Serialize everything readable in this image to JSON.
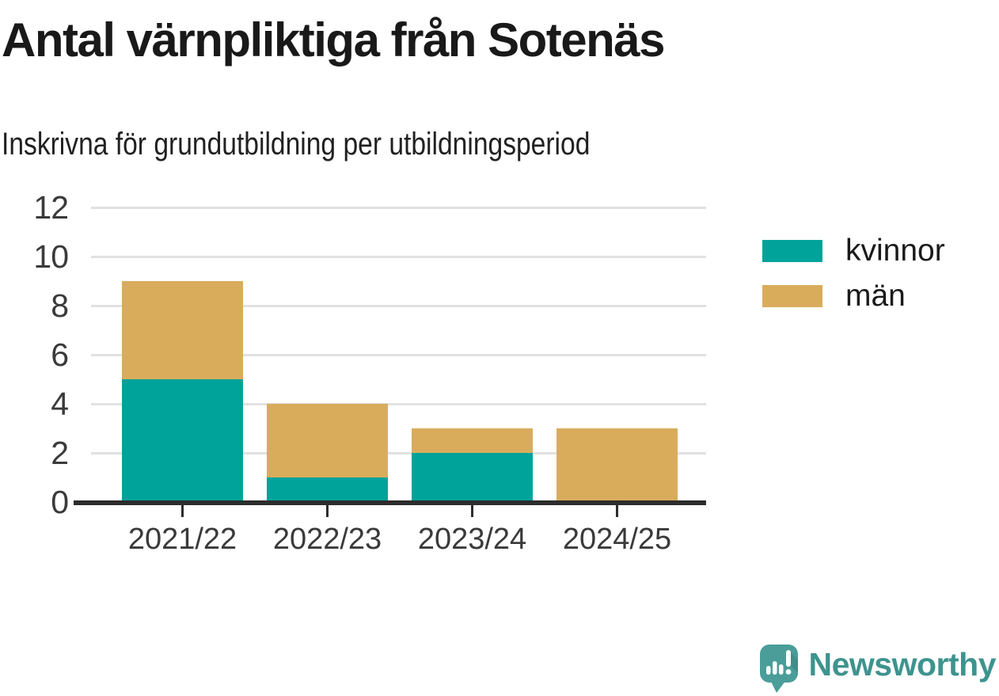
{
  "header": {
    "title": "Antal värnpliktiga från Sotenäs",
    "subtitle": "Inskrivna för grundutbildning per utbildningsperiod"
  },
  "chart_data": {
    "type": "bar",
    "stacked": true,
    "title": "Antal värnpliktiga från Sotenäs",
    "subtitle": "Inskrivna för grundutbildning per utbildningsperiod",
    "categories": [
      "2021/22",
      "2022/23",
      "2023/24",
      "2024/25"
    ],
    "series": [
      {
        "name": "kvinnor",
        "color": "#00A39A",
        "values": [
          5,
          1,
          2,
          0
        ]
      },
      {
        "name": "män",
        "color": "#D9AC5C",
        "values": [
          4,
          3,
          1,
          3
        ]
      }
    ],
    "totals": [
      9,
      4,
      3,
      3
    ],
    "ylim": [
      0,
      12
    ],
    "yticks": [
      0,
      2,
      4,
      6,
      8,
      10,
      12
    ],
    "grid": true,
    "legend_position": "right",
    "xlabel": "",
    "ylabel": ""
  },
  "legend": {
    "items": [
      {
        "label": "kvinnor",
        "color": "#00A39A"
      },
      {
        "label": "män",
        "color": "#D9AC5C"
      }
    ]
  },
  "branding": {
    "logo_text": "Newsworthy",
    "text_color": "#3e938e",
    "icon_color": "#4a9d99"
  },
  "colors": {
    "axis": "#2d2d2d",
    "gridline": "#e1e1e1",
    "tick_label": "#3a3a3a",
    "title": "#191919"
  }
}
